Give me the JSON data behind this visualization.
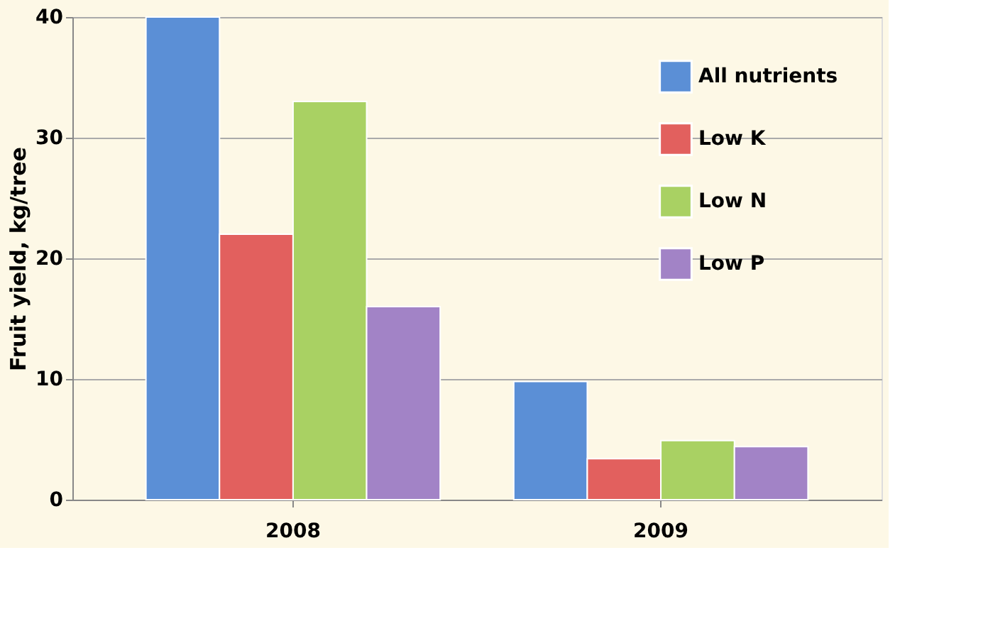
{
  "chart_data": {
    "type": "bar",
    "ylabel": "Fruit yield, kg/tree",
    "categories": [
      "2008",
      "2009"
    ],
    "series": [
      {
        "name": "All nutrients",
        "color": "#5b8fd6",
        "values": [
          40,
          9.8
        ]
      },
      {
        "name": "Low K",
        "color": "#e2605e",
        "values": [
          22,
          3.4
        ]
      },
      {
        "name": "Low N",
        "color": "#a9d163",
        "values": [
          33,
          4.9
        ]
      },
      {
        "name": "Low P",
        "color": "#a283c6",
        "values": [
          16,
          4.4
        ]
      }
    ],
    "ylim": [
      0,
      40
    ],
    "yticks": [
      0,
      10,
      20,
      30,
      40
    ],
    "grid": "y",
    "legend": "top right"
  }
}
